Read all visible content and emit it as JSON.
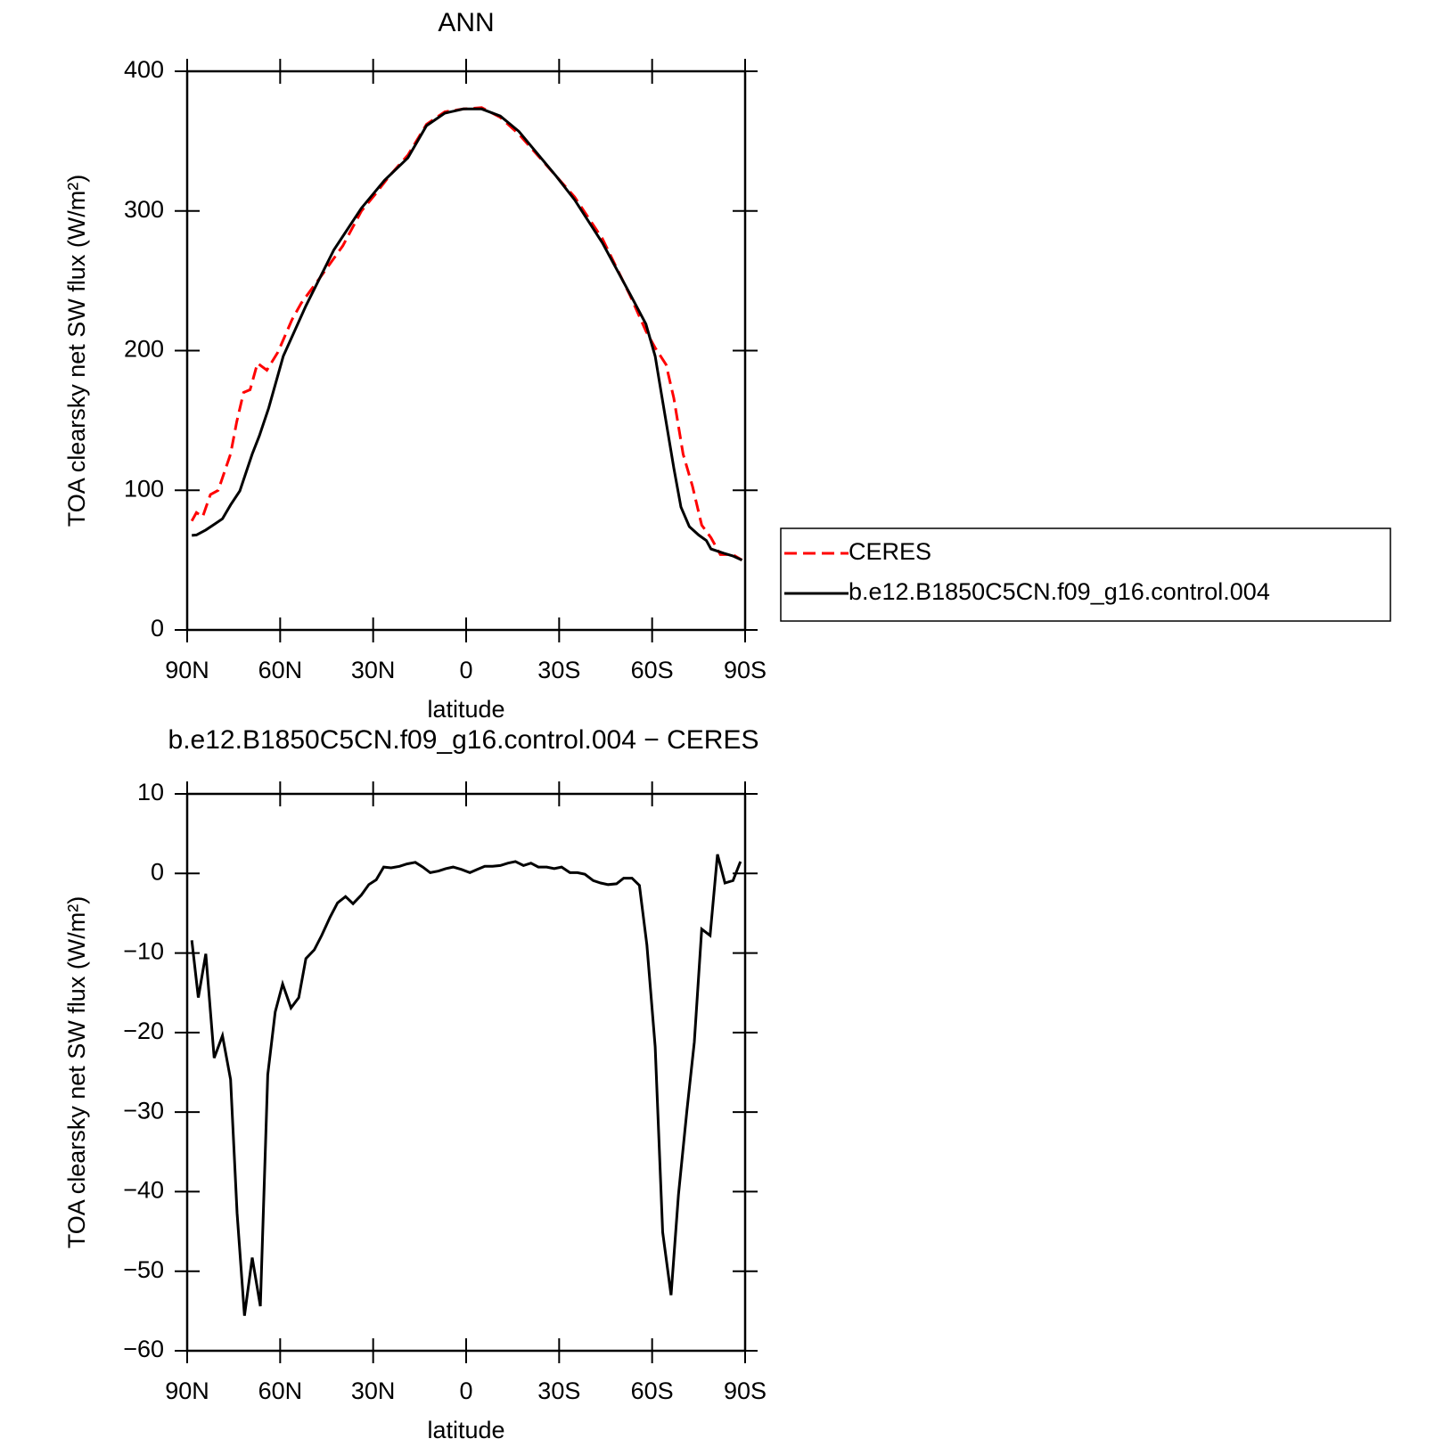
{
  "chart_data": [
    {
      "type": "line",
      "title": "ANN",
      "xlabel": "latitude",
      "ylabel": "TOA clearsky net SW flux (W/m²)",
      "xlim": [
        90,
        -90
      ],
      "xticks": [
        {
          "value": 90,
          "label": "90N"
        },
        {
          "value": 60,
          "label": "60N"
        },
        {
          "value": 30,
          "label": "30N"
        },
        0,
        {
          "value": -30,
          "label": "30S"
        },
        {
          "value": -60,
          "label": "60S"
        },
        {
          "value": -90,
          "label": "90S"
        }
      ],
      "ylim": [
        0,
        400
      ],
      "yticks": [
        0,
        100,
        200,
        300,
        400
      ],
      "legend": "right",
      "series": [
        {
          "name": "CERES",
          "color": "#ff0000",
          "dash": "dashed",
          "x": [
            88.5,
            87,
            85,
            82.5,
            80,
            76,
            74,
            71.8,
            69.7,
            67.3,
            64.3,
            60.7,
            56.2,
            53.2,
            47.2,
            39.8,
            33.8,
            29.3,
            24.8,
            18.8,
            12.8,
            6.9,
            0.9,
            -5,
            -11,
            -17,
            -29,
            -35,
            -44,
            -53,
            -58,
            -61,
            -64.5,
            -67,
            -70,
            -73,
            -76,
            -79,
            -82,
            -86,
            -89
          ],
          "values": [
            78,
            84,
            81,
            97,
            100,
            126,
            149,
            170,
            172,
            191,
            186,
            199,
            222,
            234,
            252,
            275,
            300,
            312,
            325,
            340,
            362,
            371,
            373,
            374,
            367,
            355,
            325,
            310,
            280,
            239,
            214,
            202,
            190,
            166,
            126,
            103,
            75,
            66,
            54,
            54,
            50
          ]
        },
        {
          "name": "b.e12.B1850C5CN.f09_g16.control.004",
          "color": "#000000",
          "dash": "solid",
          "x": [
            88.5,
            87,
            84,
            81,
            78.6,
            76,
            73,
            69,
            66.7,
            63.7,
            59,
            51.7,
            42.7,
            33.8,
            26.3,
            18.8,
            12.8,
            6.9,
            0.9,
            -5,
            -11,
            -17,
            -29,
            -35,
            -44,
            -53,
            -58,
            -61,
            -63,
            -67,
            -69.3,
            -72,
            -75,
            -77.5,
            -79,
            -83,
            -86,
            -89
          ],
          "values": [
            67.7,
            68,
            71.6,
            76,
            79.6,
            89.5,
            99.5,
            126,
            139,
            159,
            196,
            232,
            272,
            302,
            322,
            338,
            361,
            370,
            373,
            373,
            368,
            357,
            325,
            308,
            277,
            240,
            219,
            196,
            169,
            116,
            88,
            74,
            68,
            64,
            58,
            55,
            53,
            50
          ]
        }
      ]
    },
    {
      "type": "line",
      "title": "b.e12.B1850C5CN.f09_g16.control.004 − CERES",
      "xlabel": "latitude",
      "ylabel": "TOA clearsky net SW flux (W/m²)",
      "xlim": [
        90,
        -90
      ],
      "xticks": [
        {
          "value": 90,
          "label": "90N"
        },
        {
          "value": 60,
          "label": "60N"
        },
        {
          "value": 30,
          "label": "30N"
        },
        0,
        {
          "value": -30,
          "label": "30S"
        },
        {
          "value": -60,
          "label": "60S"
        },
        {
          "value": -90,
          "label": "90S"
        }
      ],
      "ylim": [
        -60,
        10
      ],
      "yticks": [
        {
          "value": -60,
          "label": "−60"
        },
        {
          "value": -50,
          "label": "−50"
        },
        {
          "value": -40,
          "label": "−40"
        },
        {
          "value": -30,
          "label": "−30"
        },
        {
          "value": -20,
          "label": "−20"
        },
        {
          "value": -10,
          "label": "−10"
        },
        0,
        10
      ],
      "color": "#000000",
      "x": [
        88.5,
        86.4,
        84,
        81.3,
        78.6,
        76,
        73.9,
        71.5,
        69,
        66.4,
        64,
        61.6,
        59.2,
        56.5,
        54,
        51.7,
        49,
        46.6,
        43.9,
        41.5,
        38.9,
        36.5,
        33.8,
        31.4,
        29,
        26.6,
        24.2,
        21.5,
        19.1,
        16.4,
        14,
        11.6,
        8.9,
        6.6,
        4.2,
        1.5,
        -1.2,
        -3.6,
        -6,
        -8.5,
        -11,
        -13.5,
        -15.9,
        -18.5,
        -20.9,
        -23.3,
        -26,
        -28.4,
        -30.8,
        -33.5,
        -35.9,
        -38.3,
        -41,
        -43.4,
        -45.8,
        -48.5,
        -50.8,
        -53.5,
        -55.9,
        -58.3,
        -61,
        -63.4,
        -66.1,
        -68.5,
        -71.2,
        -73.6,
        -76,
        -78.7,
        -81.1,
        -83.5,
        -86.1,
        -88.5
      ],
      "values": [
        -8.4,
        -15.6,
        -10.1,
        -23.2,
        -20.4,
        -25.9,
        -42.7,
        -55.6,
        -48.3,
        -54.4,
        -25.3,
        -17.4,
        -13.9,
        -16.9,
        -15.6,
        -10.7,
        -9.6,
        -7.8,
        -5.5,
        -3.7,
        -2.9,
        -3.8,
        -2.7,
        -1.4,
        -0.8,
        0.8,
        0.7,
        0.9,
        1.2,
        1.4,
        0.8,
        0.1,
        0.3,
        0.6,
        0.8,
        0.5,
        0.1,
        0.5,
        0.9,
        0.9,
        1.0,
        1.3,
        1.5,
        1.0,
        1.3,
        0.8,
        0.8,
        0.6,
        0.8,
        0.1,
        0.1,
        -0.1,
        -0.9,
        -1.2,
        -1.4,
        -1.3,
        -0.6,
        -0.6,
        -1.5,
        -9.0,
        -21.8,
        -45.1,
        -53.0,
        -40.4,
        -29.9,
        -21.2,
        -7.0,
        -7.8,
        2.4,
        -1.2,
        -0.9,
        1.5
      ]
    }
  ]
}
